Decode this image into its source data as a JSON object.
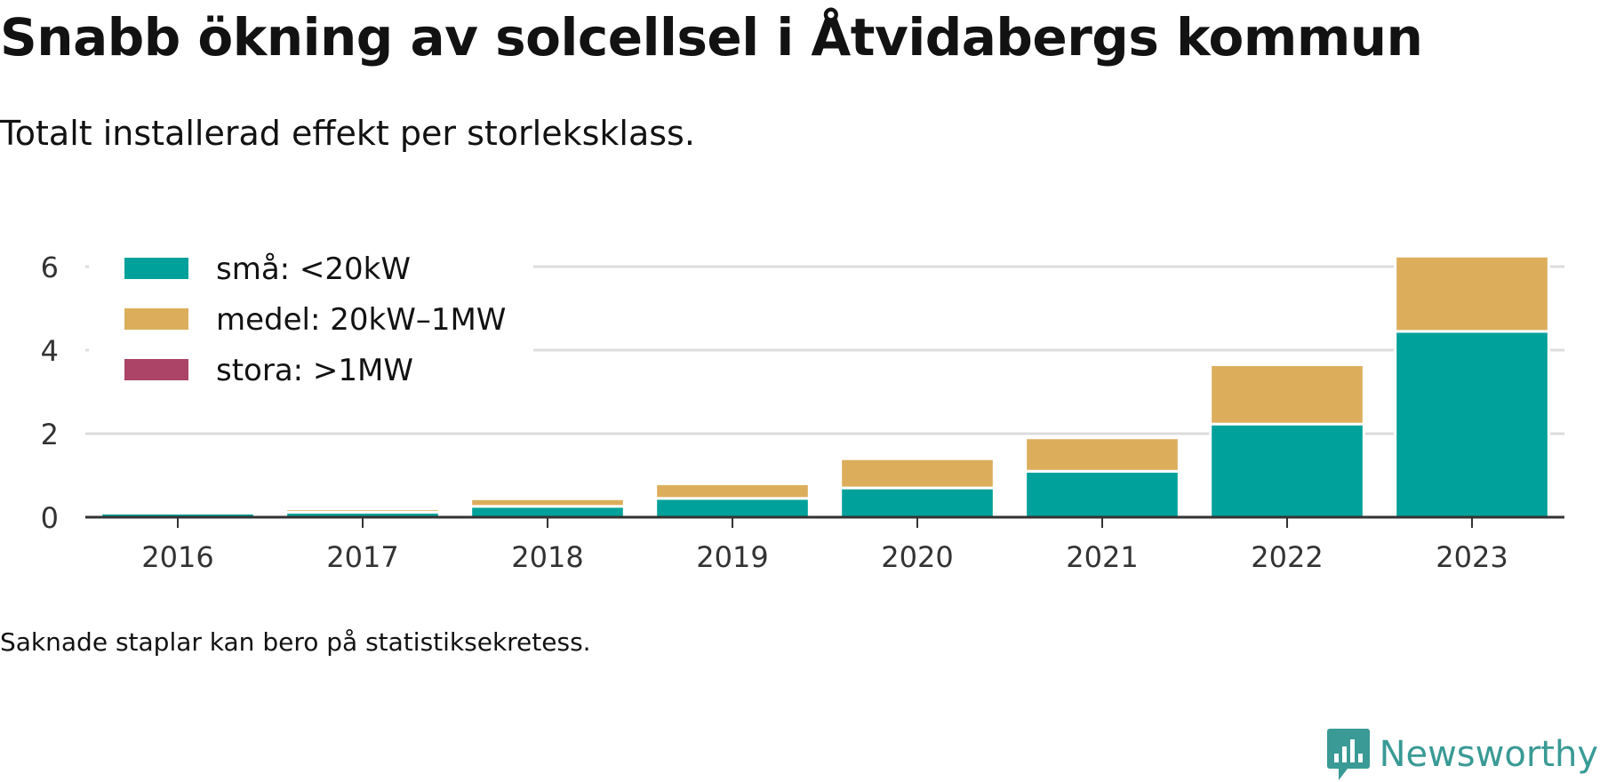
{
  "title": "Snabb ökning av solcellsel i Åtvidabergs kommun",
  "subtitle": "Totalt installerad effekt per storleksklass.",
  "note": "Saknade staplar kan bero på statistiksekretess.",
  "brand": {
    "name": "Newsworthy",
    "icon": "newsworthy-logo-icon",
    "color": "#3a9a95"
  },
  "chart_data": {
    "type": "bar",
    "stacked": true,
    "categories": [
      "2016",
      "2017",
      "2018",
      "2019",
      "2020",
      "2021",
      "2022",
      "2023"
    ],
    "series": [
      {
        "name": "små: <20kW",
        "color": "#00a19a",
        "values": [
          0.1,
          0.12,
          0.26,
          0.45,
          0.7,
          1.1,
          2.23,
          4.45
        ]
      },
      {
        "name": "medel: 20kW–1MW",
        "color": "#dcae5c",
        "values": [
          0.06,
          0.08,
          0.18,
          0.35,
          0.7,
          0.8,
          1.42,
          1.8
        ]
      },
      {
        "name": "stora: >1MW",
        "color": "#ab4467",
        "values": [
          0,
          0,
          0,
          0,
          0,
          0,
          0,
          0
        ]
      }
    ],
    "yticks": [
      0,
      2,
      4,
      6
    ],
    "ylim": [
      0,
      6.5
    ],
    "grid": true,
    "legend": "top-left"
  }
}
